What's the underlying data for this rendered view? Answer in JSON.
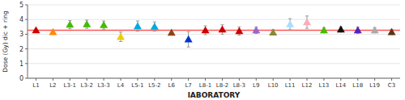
{
  "chart_data": {
    "type": "scatter",
    "xlabel": "lABORATORY",
    "ylabel": "Dose (Gy) dic + ring",
    "categories": [
      "L1",
      "L2",
      "L3-1",
      "L3-2",
      "L3-3",
      "L4",
      "L5-1",
      "L5-2",
      "L6",
      "L7",
      "L8-1",
      "L8-2",
      "L8-3",
      "L9",
      "L10",
      "L11",
      "L12",
      "L13",
      "L14",
      "L18",
      "L19",
      "C3"
    ],
    "values": [
      3.27,
      3.15,
      3.65,
      3.68,
      3.62,
      2.82,
      3.55,
      3.52,
      3.1,
      2.65,
      3.27,
      3.32,
      3.22,
      3.27,
      3.12,
      3.68,
      3.82,
      3.27,
      3.32,
      3.27,
      3.27,
      3.15
    ],
    "errors": [
      0.08,
      0.1,
      0.28,
      0.28,
      0.28,
      0.32,
      0.35,
      0.32,
      0.16,
      0.52,
      0.3,
      0.32,
      0.28,
      0.22,
      0.18,
      0.38,
      0.42,
      0.18,
      0.18,
      0.22,
      0.18,
      0.18
    ],
    "colors": [
      "#cc0000",
      "#ff8800",
      "#44bb00",
      "#44bb00",
      "#44bb00",
      "#eecc00",
      "#00aadd",
      "#00aadd",
      "#8B4513",
      "#0033cc",
      "#cc0000",
      "#cc0000",
      "#cc0000",
      "#9966cc",
      "#888833",
      "#aaddff",
      "#ffaabb",
      "#44bb00",
      "#111111",
      "#5522bb",
      "#aaaaaa",
      "#5c3317"
    ],
    "marker": "triangle",
    "ref_line": {
      "value": 3.27,
      "color": "#ff5555"
    },
    "ylim": [
      0,
      5
    ],
    "yticks": [
      0,
      1,
      2,
      3,
      4,
      5
    ],
    "grid": true
  }
}
